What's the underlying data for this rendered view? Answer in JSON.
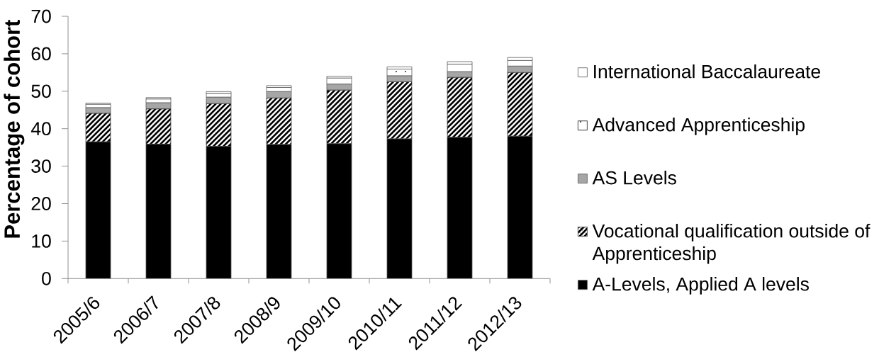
{
  "chart_data": {
    "type": "bar",
    "stacked": true,
    "ylabel": "Percentage of cohort",
    "categories": [
      "2005/6",
      "2006/7",
      "2007/8",
      "2008/9",
      "2009/10",
      "2010/11",
      "2011/12",
      "2012/13"
    ],
    "series": [
      {
        "name": "A-Levels, Applied A levels",
        "color": "#000000",
        "values": [
          36.5,
          35.9,
          35.3,
          35.8,
          36.0,
          37.3,
          37.7,
          38.0
        ]
      },
      {
        "name": "Vocational qualification outside of Apprenticeship",
        "color": "#000000",
        "values": [
          7.6,
          9.4,
          11.4,
          12.4,
          14.3,
          15.2,
          16.0,
          17.0
        ]
      },
      {
        "name": "AS Levels",
        "color": "#a6a6a6",
        "values": [
          1.5,
          1.6,
          1.7,
          1.7,
          1.6,
          1.6,
          1.5,
          1.7
        ]
      },
      {
        "name": "Advanced Apprenticeship",
        "color": "#ffffff",
        "values": [
          0.9,
          1.0,
          1.0,
          1.1,
          1.6,
          1.8,
          2.0,
          1.5
        ]
      },
      {
        "name": "International Baccalaureate",
        "color": "#ffffff",
        "values": [
          0.3,
          0.4,
          0.5,
          0.5,
          0.5,
          0.6,
          0.7,
          0.8
        ]
      }
    ],
    "ylim": [
      0,
      70
    ],
    "yticks": [
      0,
      10,
      20,
      30,
      40,
      50,
      60,
      70
    ],
    "legend": "right"
  }
}
